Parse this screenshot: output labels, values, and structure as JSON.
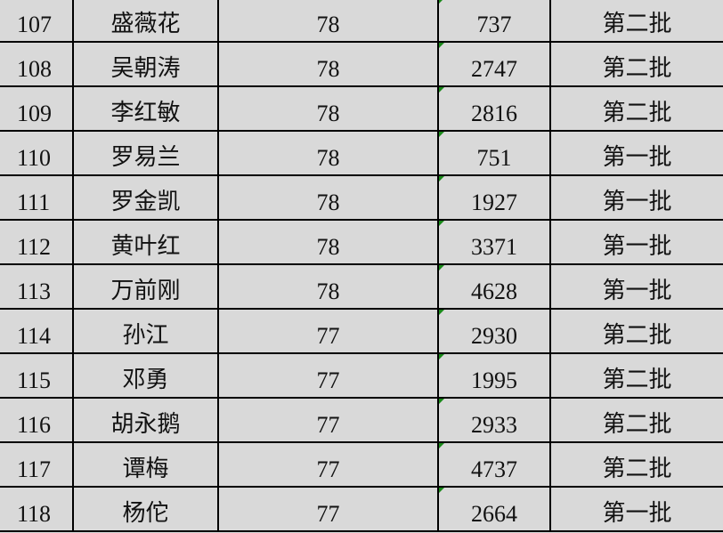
{
  "colors": {
    "background": "#d9d9d9",
    "gridline": "#000000",
    "error_indicator": "#1a8a1a"
  },
  "rows": [
    {
      "id": "107",
      "name": "盛薇花",
      "score": "78",
      "num": "737",
      "batch": "第二批"
    },
    {
      "id": "108",
      "name": "吴朝涛",
      "score": "78",
      "num": "2747",
      "batch": "第二批"
    },
    {
      "id": "109",
      "name": "李红敏",
      "score": "78",
      "num": "2816",
      "batch": "第二批"
    },
    {
      "id": "110",
      "name": "罗易兰",
      "score": "78",
      "num": "751",
      "batch": "第一批"
    },
    {
      "id": "111",
      "name": "罗金凯",
      "score": "78",
      "num": "1927",
      "batch": "第一批"
    },
    {
      "id": "112",
      "name": "黄叶红",
      "score": "78",
      "num": "3371",
      "batch": "第一批"
    },
    {
      "id": "113",
      "name": "万前刚",
      "score": "78",
      "num": "4628",
      "batch": "第一批"
    },
    {
      "id": "114",
      "name": "孙江",
      "score": "77",
      "num": "2930",
      "batch": "第二批"
    },
    {
      "id": "115",
      "name": "邓勇",
      "score": "77",
      "num": "1995",
      "batch": "第二批"
    },
    {
      "id": "116",
      "name": "胡永鹅",
      "score": "77",
      "num": "2933",
      "batch": "第二批"
    },
    {
      "id": "117",
      "name": "谭梅",
      "score": "77",
      "num": "4737",
      "batch": "第二批"
    },
    {
      "id": "118",
      "name": "杨佗",
      "score": "77",
      "num": "2664",
      "batch": "第一批"
    }
  ]
}
